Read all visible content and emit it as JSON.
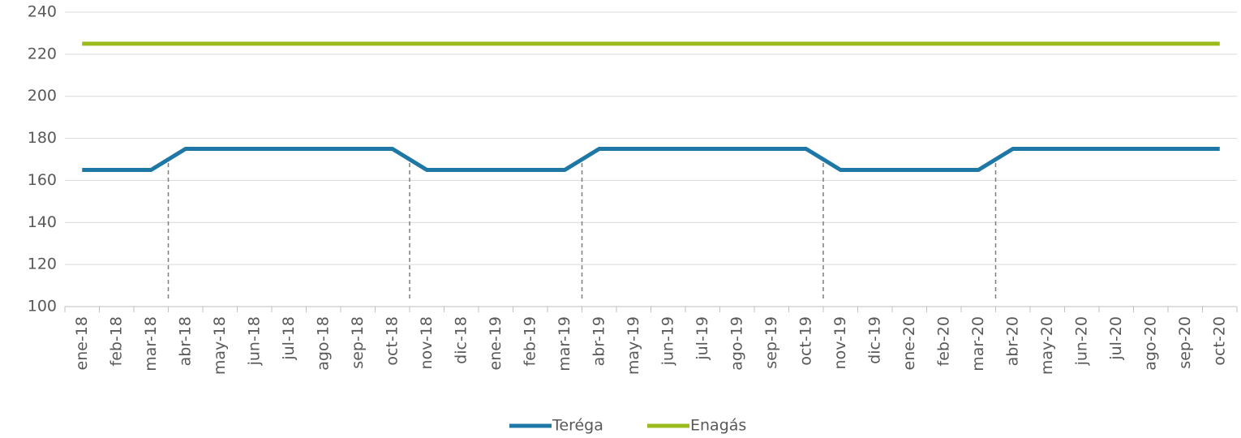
{
  "chart_data": {
    "type": "line",
    "categories": [
      "ene-18",
      "feb-18",
      "mar-18",
      "abr-18",
      "may-18",
      "jun-18",
      "jul-18",
      "ago-18",
      "sep-18",
      "oct-18",
      "nov-18",
      "dic-18",
      "ene-19",
      "feb-19",
      "mar-19",
      "abr-19",
      "may-19",
      "jun-19",
      "jul-19",
      "ago-19",
      "sep-19",
      "oct-19",
      "nov-19",
      "dic-19",
      "ene-20",
      "feb-20",
      "mar-20",
      "abr-20",
      "may-20",
      "jun-20",
      "jul-20",
      "ago-20",
      "sep-20",
      "oct-20"
    ],
    "series": [
      {
        "name": "Teréga",
        "color": "#1f77a5",
        "values": [
          165,
          165,
          165,
          175,
          175,
          175,
          175,
          175,
          175,
          175,
          165,
          165,
          165,
          165,
          165,
          175,
          175,
          175,
          175,
          175,
          175,
          175,
          165,
          165,
          165,
          165,
          165,
          175,
          175,
          175,
          175,
          175,
          175,
          175
        ]
      },
      {
        "name": "Enagás",
        "color": "#9bbb1c",
        "values": [
          225,
          225,
          225,
          225,
          225,
          225,
          225,
          225,
          225,
          225,
          225,
          225,
          225,
          225,
          225,
          225,
          225,
          225,
          225,
          225,
          225,
          225,
          225,
          225,
          225,
          225,
          225,
          225,
          225,
          225,
          225,
          225,
          225,
          225
        ]
      }
    ],
    "ylim": [
      100,
      240
    ],
    "yticks": [
      100,
      120,
      140,
      160,
      180,
      200,
      220,
      240
    ],
    "grid": true,
    "legend": "bottom"
  }
}
